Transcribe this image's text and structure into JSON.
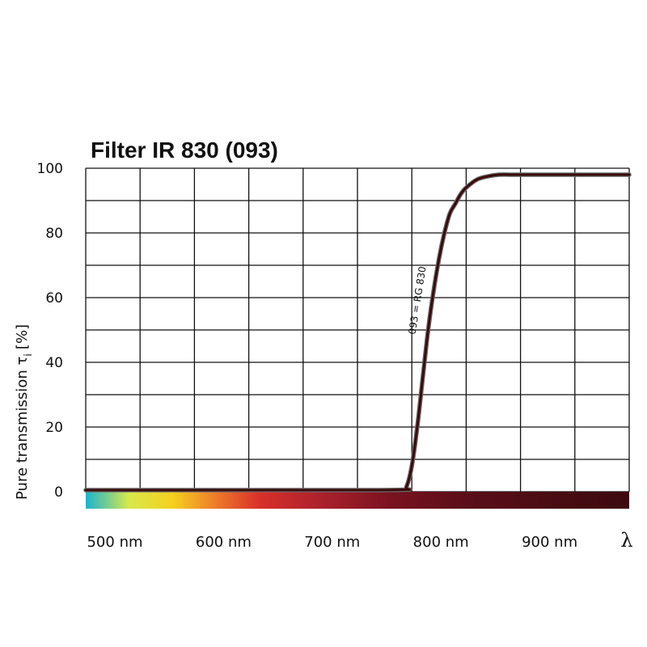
{
  "chart_data": {
    "type": "line",
    "title": "Filter IR 830 (093)",
    "ylabel": "Pure transmission τ",
    "ylabel_subscript": "i",
    "ylabel_unit": "[%]",
    "xlim": [
      500,
      1000
    ],
    "ylim": [
      0,
      100
    ],
    "x_ticks": [
      500,
      600,
      700,
      800,
      900
    ],
    "x_tick_labels": [
      "500 nm",
      "600 nm",
      "700 nm",
      "800 nm",
      "900 nm"
    ],
    "x_axis_symbol": "λ",
    "y_ticks": [
      0,
      20,
      40,
      60,
      80,
      100
    ],
    "y_tick_labels": [
      "0",
      "20",
      "40",
      "60",
      "80",
      "100"
    ],
    "grid": true,
    "series": [
      {
        "name": "093 = RG 830",
        "color": "#3a0a0a",
        "x": [
          500,
          700,
          790,
          795,
          800,
          805,
          810,
          815,
          820,
          825,
          830,
          835,
          840,
          845,
          850,
          860,
          870,
          880,
          890,
          900,
          950,
          1000
        ],
        "y": [
          0.5,
          0.5,
          0.6,
          1.5,
          8,
          20,
          35,
          50,
          62,
          72,
          80,
          86,
          89,
          92,
          94,
          96.5,
          97.5,
          98,
          98,
          98,
          98,
          98
        ]
      }
    ],
    "color_band_stops": [
      {
        "x": 500,
        "color": "#1bb3cf"
      },
      {
        "x": 540,
        "color": "#d8e84a"
      },
      {
        "x": 580,
        "color": "#f5d11e"
      },
      {
        "x": 620,
        "color": "#ee7a2a"
      },
      {
        "x": 660,
        "color": "#d8302a"
      },
      {
        "x": 720,
        "color": "#a8202c"
      },
      {
        "x": 780,
        "color": "#7a1220"
      },
      {
        "x": 850,
        "color": "#5a0e18"
      },
      {
        "x": 1000,
        "color": "#3d0a10"
      }
    ]
  }
}
